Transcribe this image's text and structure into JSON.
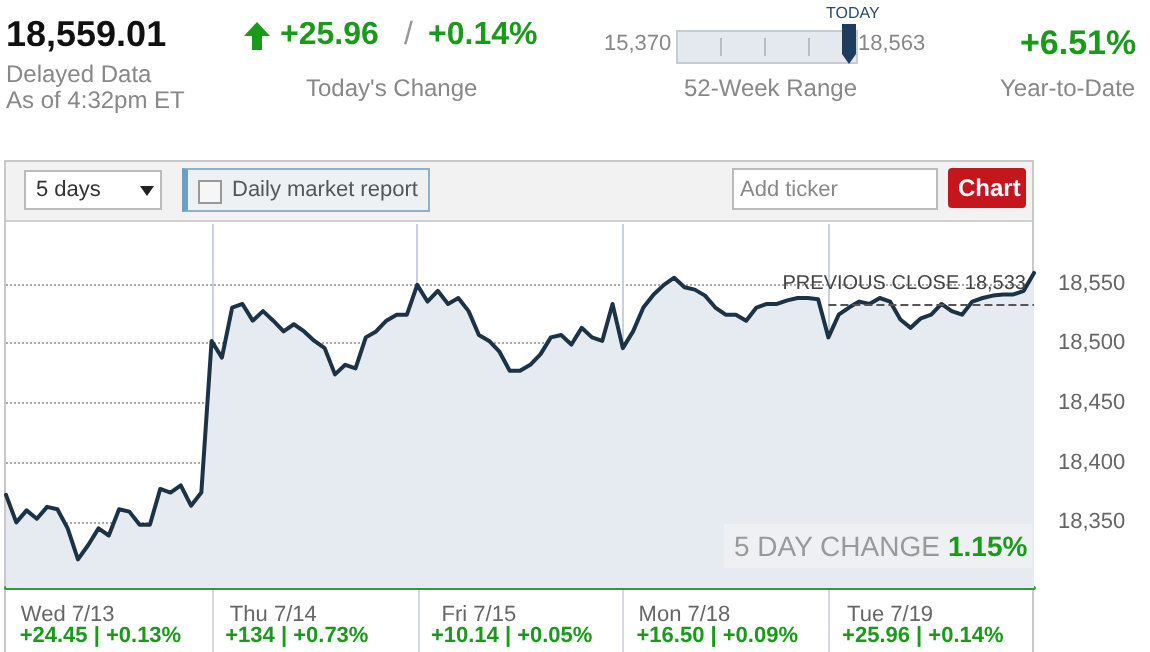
{
  "chart_data": {
    "type": "area",
    "categories": [
      null,
      null,
      null,
      null,
      null,
      null,
      "Wed 7/13",
      null,
      null,
      null,
      null,
      null,
      null,
      null,
      null,
      null,
      null,
      null,
      null,
      null,
      null,
      null,
      null,
      null,
      null,
      null,
      "Thu 7/14",
      null,
      null,
      null,
      null,
      null,
      null,
      null,
      null,
      null,
      null,
      null,
      null,
      null,
      null,
      null,
      null,
      null,
      null,
      null,
      "Fri 7/15",
      null,
      null,
      null,
      null,
      null,
      null,
      null,
      null,
      null,
      null,
      null,
      null,
      null,
      null,
      null,
      null,
      null,
      null,
      null,
      "Mon 7/18",
      null,
      null,
      null,
      null,
      null,
      null,
      null,
      null,
      null,
      null,
      null,
      null,
      null,
      null,
      null,
      null,
      null,
      null,
      null,
      "Tue 7/19",
      null,
      null,
      null,
      null,
      null,
      null,
      null,
      null,
      null,
      null,
      null,
      null,
      null,
      null
    ],
    "series": [
      {
        "color": "#1c3347",
        "values": [
          18373,
          18350,
          18360,
          18353,
          18363,
          18361,
          18345,
          18319,
          18331,
          18345,
          18339,
          18361,
          18359,
          18348,
          18348,
          18378,
          18375,
          18381,
          18364,
          18375,
          18502,
          18488,
          18530,
          18533,
          18519,
          18527,
          18519,
          18510,
          18516,
          18510,
          18502,
          18496,
          18474,
          18482,
          18479,
          18505,
          18510,
          18519,
          18524,
          18524,
          18549,
          18535,
          18544,
          18533,
          18538,
          18527,
          18507,
          18502,
          18493,
          18477,
          18477,
          18482,
          18491,
          18505,
          18507,
          18499,
          18513,
          18505,
          18502,
          18533,
          18496,
          18510,
          18530,
          18541,
          18549,
          18555,
          18547,
          18545,
          18540,
          18530,
          18524,
          18524,
          18519,
          18530,
          18533,
          18533,
          18536,
          18538,
          18538,
          18537,
          18505,
          18524,
          18530,
          18535,
          18533,
          18538,
          18535,
          18520,
          18513,
          18521,
          18524,
          18533,
          18527,
          18524,
          18535,
          18538,
          18540,
          18541,
          18541,
          18544,
          18559
        ]
      }
    ],
    "ylim": [
      18295,
      18600
    ],
    "yticks": [
      {
        "value": 18350,
        "label": "18,350"
      },
      {
        "value": 18400,
        "label": "18,400"
      },
      {
        "value": 18450,
        "label": "18,450"
      },
      {
        "value": 18500,
        "label": "18,500"
      },
      {
        "value": 18550,
        "label": "18,550"
      }
    ],
    "grid": true,
    "marker": "none",
    "ref_lines": [
      {
        "axis": "y",
        "value": 18533,
        "label": "PREVIOUS CLOSE 18,533",
        "line_style": "dashed",
        "color": "#555555"
      }
    ],
    "annotations": [
      "18,559.01",
      "Delayed Data",
      "As of 4:32pm ET",
      "+25.96",
      "/",
      "+0.14%",
      "Today's Change",
      "15,370",
      "TODAY",
      "18,563",
      "52-Week Range",
      "+6.51%",
      "Year-to-Date",
      "5 days",
      "Daily market report",
      "Add ticker",
      "Chart",
      "5 DAY CHANGE",
      "1.15%",
      "+24.45 | +0.13%",
      "+134 | +0.73%",
      "+10.14 | +0.05%",
      "+16.50 | +0.09%",
      "+25.96 | +0.14%"
    ]
  }
}
